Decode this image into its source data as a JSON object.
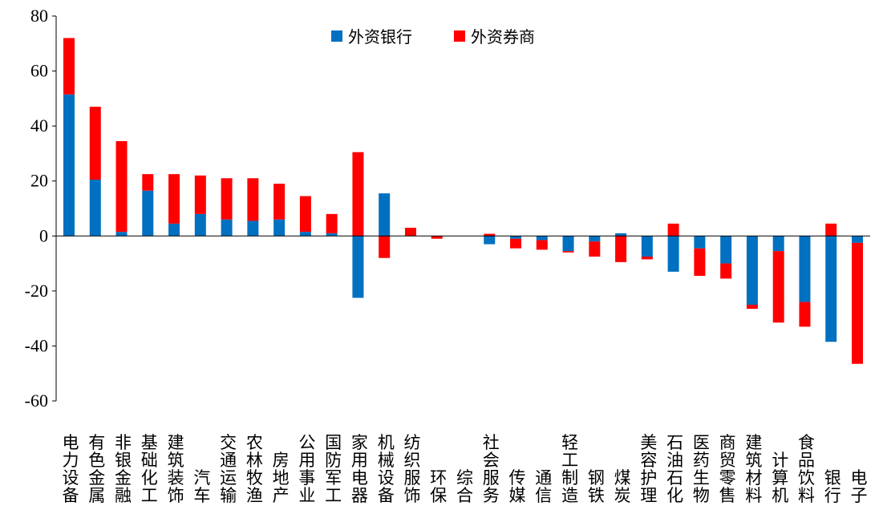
{
  "chart_data": {
    "type": "bar",
    "stacked": true,
    "title": "",
    "xlabel": "",
    "ylabel": "",
    "ylim": [
      -60,
      80
    ],
    "yticks": [
      80,
      60,
      40,
      20,
      0,
      -20,
      -40,
      -60
    ],
    "yticks_labels": [
      "80",
      "60",
      "40",
      "20",
      "0",
      "-20",
      "-40",
      "-60"
    ],
    "legend_position": "top-center",
    "categories": [
      "电力设备",
      "有色金属",
      "非银金融",
      "基础化工",
      "建筑装饰",
      "汽车",
      "交通运输",
      "农林牧渔",
      "房地产",
      "公用事业",
      "国防军工",
      "家用电器",
      "机械设备",
      "纺织服饰",
      "环保",
      "综合",
      "社会服务",
      "传媒",
      "通信",
      "轻工制造",
      "钢铁",
      "煤炭",
      "美容护理",
      "石油石化",
      "医药生物",
      "商贸零售",
      "建筑材料",
      "计算机",
      "食品饮料",
      "银行",
      "电子"
    ],
    "series": [
      {
        "name": "外资银行",
        "color": "#0070C0",
        "values": [
          51.5,
          20.5,
          1.5,
          16.5,
          4.5,
          8,
          6,
          5.5,
          6,
          1.5,
          1,
          -22.5,
          15.5,
          0,
          0,
          0,
          -3,
          -1,
          -1.5,
          -5.5,
          -2,
          1,
          -7.5,
          -13,
          -4.5,
          -10,
          -25,
          -5.5,
          -24,
          -38.5,
          -2.5
        ]
      },
      {
        "name": "外资券商",
        "color": "#FF0000",
        "values": [
          20.5,
          26.5,
          33,
          6,
          18,
          14,
          15,
          15.5,
          13,
          13,
          7,
          30.5,
          -8,
          3,
          -1,
          0,
          0.8,
          -3.5,
          -3.5,
          -0.5,
          -5.5,
          -9.5,
          -1,
          4.5,
          -10,
          -5.5,
          -1.5,
          -26,
          -9,
          4.5,
          -44
        ]
      }
    ]
  }
}
